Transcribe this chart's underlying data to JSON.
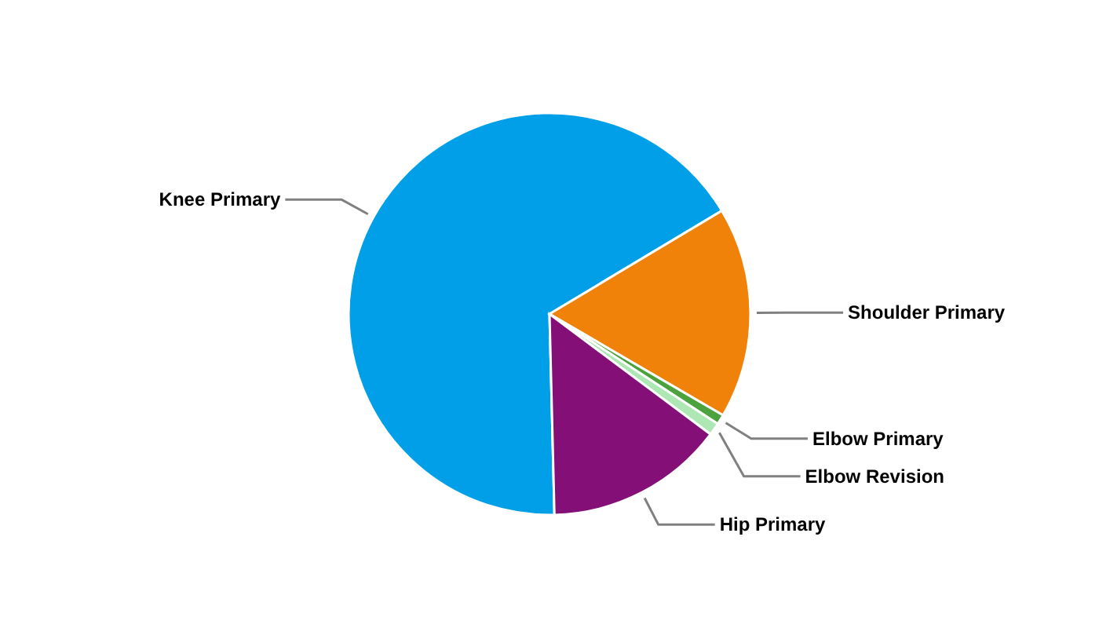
{
  "chart_data": {
    "type": "pie",
    "categories": [
      "Knee Primary",
      "Shoulder Primary",
      "Elbow Primary",
      "Elbow Revision",
      "Hip Primary"
    ],
    "values": [
      66.8,
      17.0,
      0.8,
      1.0,
      14.4
    ],
    "colors": [
      "#009fe8",
      "#f0820a",
      "#4ca23c",
      "#ade8b4",
      "#840f76"
    ]
  }
}
